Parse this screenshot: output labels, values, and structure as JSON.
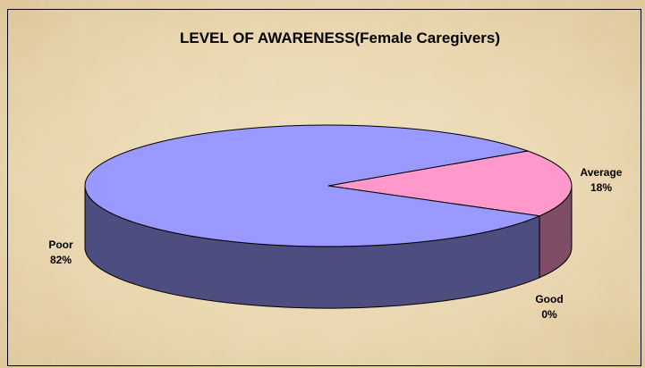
{
  "chart_data": {
    "type": "pie",
    "title": "LEVEL OF AWARENESS(Female Caregivers)",
    "categories": [
      "Average",
      "Good",
      "Poor"
    ],
    "values": [
      18,
      0,
      82
    ],
    "value_labels": [
      "18%",
      "0%",
      "82%"
    ],
    "colors": [
      "#ff99cc",
      "#ffffcc",
      "#9999ff"
    ]
  }
}
